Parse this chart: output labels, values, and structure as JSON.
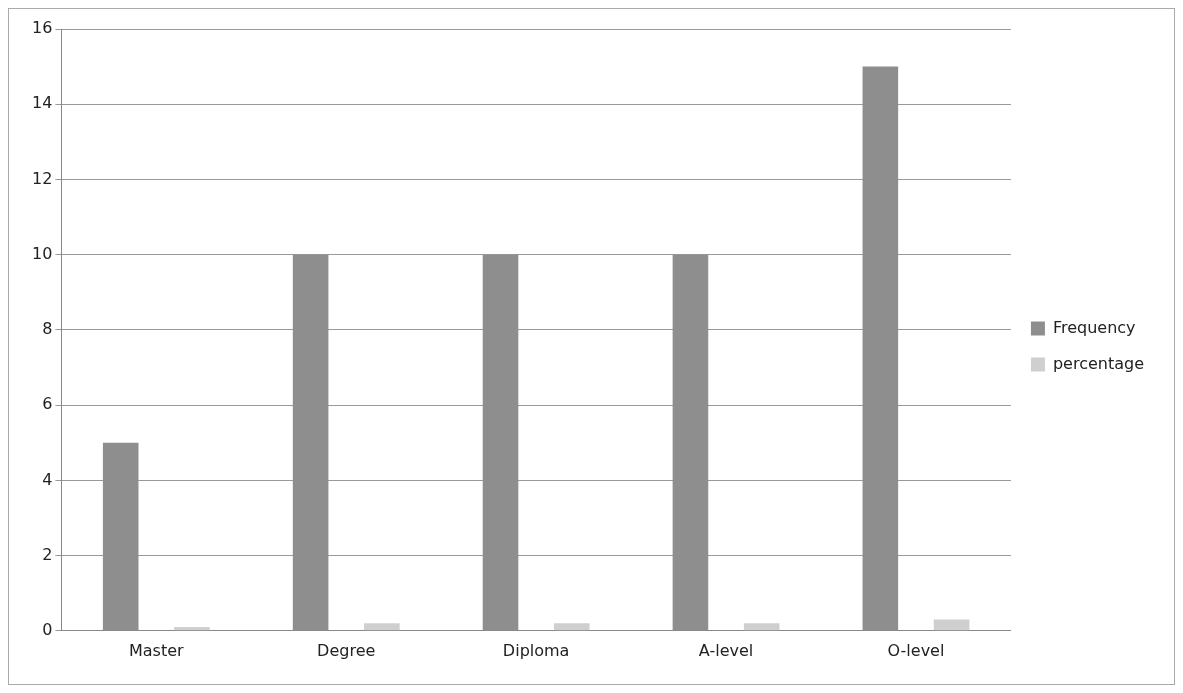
{
  "chart_data": {
    "type": "bar",
    "categories": [
      "Master",
      "Degree",
      "Diploma",
      "A-level",
      "O-level"
    ],
    "series": [
      {
        "name": "Frequency",
        "color": "#8e8e8e",
        "values": [
          5,
          10,
          10,
          10,
          15
        ]
      },
      {
        "name": "percentage",
        "color": "#cfcfcf",
        "values": [
          0.1,
          0.2,
          0.2,
          0.2,
          0.3
        ]
      }
    ],
    "ylim": [
      0,
      16
    ],
    "yticks": [
      0,
      2,
      4,
      6,
      8,
      10,
      12,
      14,
      16
    ],
    "grid": "y",
    "legend": "right"
  }
}
